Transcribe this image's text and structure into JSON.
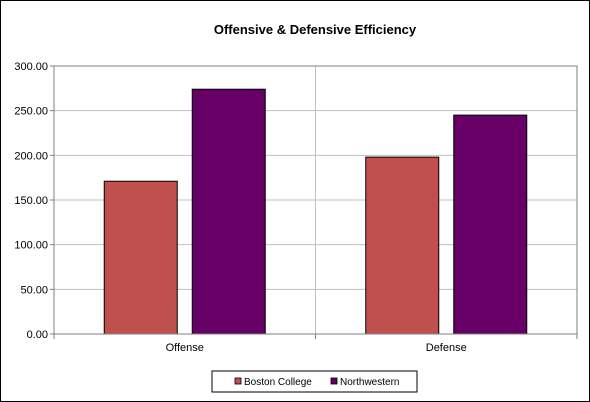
{
  "chart_data": {
    "type": "bar",
    "title": "Offensive & Defensive Efficiency",
    "xlabel": "",
    "ylabel": "",
    "categories": [
      "Offense",
      "Defense"
    ],
    "series": [
      {
        "name": "Boston College",
        "values": [
          171,
          198
        ],
        "color": "#c0504d"
      },
      {
        "name": "Northwestern",
        "values": [
          274,
          245
        ],
        "color": "#660066"
      }
    ],
    "ylim": [
      0,
      300
    ],
    "yticks": [
      0,
      50,
      100,
      150,
      200,
      250,
      300
    ],
    "ytick_labels": [
      "0.00",
      "50.00",
      "100.00",
      "150.00",
      "200.00",
      "250.00",
      "300.00"
    ],
    "grid": true,
    "legend_position": "bottom",
    "colors": {
      "grid": "#c0c0c0",
      "axis": "#808080",
      "bar_border": "#000000"
    }
  }
}
